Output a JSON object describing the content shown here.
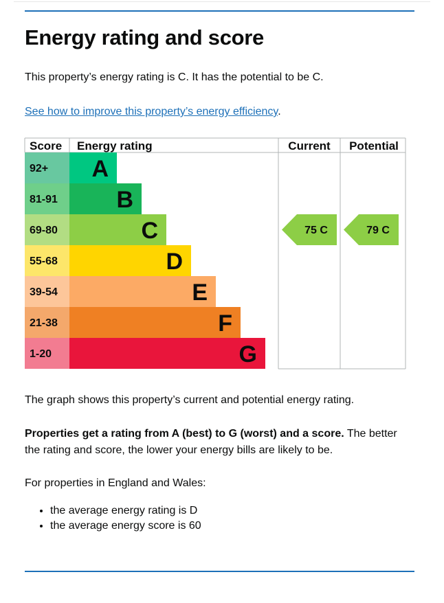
{
  "heading": "Energy rating and score",
  "intro": "This property’s energy rating is C. It has the potential to be C.",
  "improve_link": "See how to improve this property’s energy efficiency",
  "improve_period": ".",
  "chart_data": {
    "type": "bar",
    "headers": [
      "Score",
      "Energy rating",
      "Current",
      "Potential"
    ],
    "bands": [
      {
        "range": "92+",
        "letter": "A",
        "color": "#00c781",
        "score_color": "#68c8a0"
      },
      {
        "range": "81-91",
        "letter": "B",
        "color": "#19b459",
        "score_color": "#6fcf8a"
      },
      {
        "range": "69-80",
        "letter": "C",
        "color": "#8dce46",
        "score_color": "#b2dd83"
      },
      {
        "range": "55-68",
        "letter": "D",
        "color": "#ffd500",
        "score_color": "#fde66a"
      },
      {
        "range": "39-54",
        "letter": "E",
        "color": "#fcaa65",
        "score_color": "#fdc69a"
      },
      {
        "range": "21-38",
        "letter": "F",
        "color": "#ef8023",
        "score_color": "#f4a86b"
      },
      {
        "range": "1-20",
        "letter": "G",
        "color": "#e9153b",
        "score_color": "#f27c91"
      }
    ],
    "current": {
      "score": 75,
      "letter": "C",
      "label": "75  C",
      "color": "#8dce46"
    },
    "potential": {
      "score": 79,
      "letter": "C",
      "label": "79  C",
      "color": "#8dce46"
    }
  },
  "graph_caption": "The graph shows this property’s current and potential energy rating.",
  "rating_bold": "Properties get a rating from A (best) to G (worst) and a score.",
  "rating_rest": " The better the rating and score, the lower your energy bills are likely to be.",
  "regional_intro": "For properties in England and Wales:",
  "averages": [
    "the average energy rating is D",
    "the average energy score is 60"
  ]
}
